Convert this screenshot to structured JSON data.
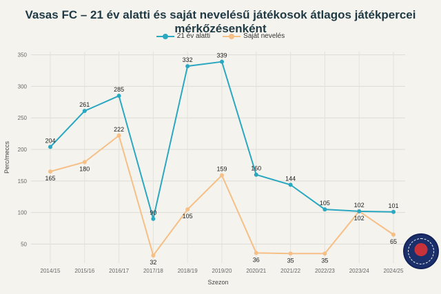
{
  "chart_data": {
    "type": "line",
    "title": "Vasas FC – 21 év alatti és saját nevelésű játékosok átlagos játékpercei mérkőzésenként",
    "xlabel": "Szezon",
    "ylabel": "Perc/meccs",
    "categories": [
      "2014/15",
      "2015/16",
      "2016/17",
      "2017/18",
      "2018/19",
      "2019/20",
      "2020/21",
      "2021/22",
      "2022/23",
      "2023/24",
      "2024/25"
    ],
    "series": [
      {
        "name": "21 év alatti",
        "color": "#2aa7c1",
        "values": [
          204,
          261,
          285,
          90,
          332,
          339,
          160,
          144,
          105,
          102,
          101
        ]
      },
      {
        "name": "Saját nevelés",
        "color": "#f6bf86",
        "values": [
          165,
          180,
          222,
          32,
          105,
          159,
          36,
          35,
          35,
          102,
          65
        ]
      }
    ],
    "ylim": [
      20,
      355
    ],
    "yticks": [
      50,
      100,
      150,
      200,
      250,
      300,
      350
    ],
    "grid": true,
    "legend_position": "top-center"
  }
}
